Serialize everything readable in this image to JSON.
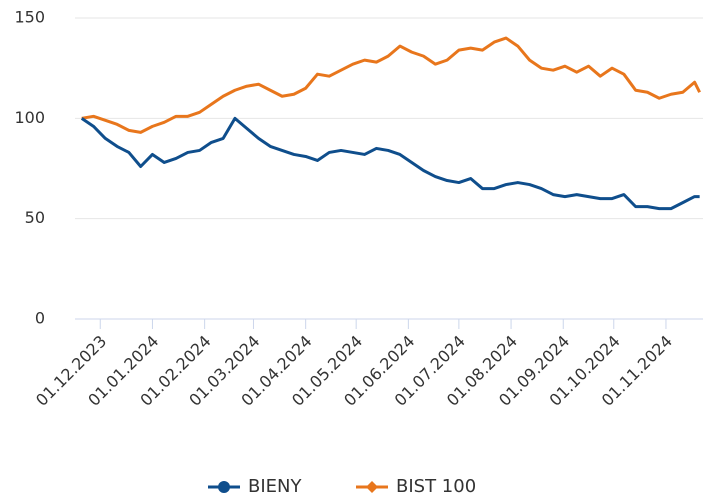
{
  "chart_data": {
    "type": "line",
    "x": [
      "20.11.2023",
      "27.11.2023",
      "04.12.2023",
      "11.12.2023",
      "18.12.2023",
      "25.12.2023",
      "01.01.2024",
      "08.01.2024",
      "15.01.2024",
      "22.01.2024",
      "29.01.2024",
      "05.02.2024",
      "12.02.2024",
      "19.02.2024",
      "26.02.2024",
      "04.03.2024",
      "11.03.2024",
      "18.03.2024",
      "25.03.2024",
      "01.04.2024",
      "08.04.2024",
      "15.04.2024",
      "22.04.2024",
      "29.04.2024",
      "06.05.2024",
      "13.05.2024",
      "20.05.2024",
      "27.05.2024",
      "03.06.2024",
      "10.06.2024",
      "17.06.2024",
      "24.06.2024",
      "01.07.2024",
      "08.07.2024",
      "15.07.2024",
      "22.07.2024",
      "29.07.2024",
      "05.08.2024",
      "12.08.2024",
      "19.08.2024",
      "26.08.2024",
      "02.09.2024",
      "09.09.2024",
      "16.09.2024",
      "23.09.2024",
      "30.09.2024",
      "07.10.2024",
      "14.10.2024",
      "21.10.2024",
      "28.10.2024",
      "04.11.2024",
      "11.11.2024",
      "18.11.2024",
      "21.11.2024"
    ],
    "series": [
      {
        "name": "BIENY",
        "color": "#0f4e8c",
        "marker": "circle",
        "values": [
          100,
          96,
          90,
          86,
          83,
          76,
          82,
          78,
          80,
          83,
          84,
          88,
          90,
          100,
          95,
          90,
          86,
          84,
          82,
          81,
          79,
          83,
          84,
          83,
          82,
          85,
          84,
          82,
          78,
          74,
          71,
          69,
          68,
          70,
          65,
          65,
          67,
          68,
          67,
          65,
          62,
          61,
          62,
          61,
          60,
          60,
          62,
          56,
          56,
          55,
          55,
          58,
          61,
          61
        ]
      },
      {
        "name": "BIST 100",
        "color": "#e8761c",
        "marker": "diamond",
        "values": [
          100,
          101,
          99,
          97,
          94,
          93,
          96,
          98,
          101,
          101,
          103,
          107,
          111,
          114,
          116,
          117,
          114,
          111,
          112,
          115,
          122,
          121,
          124,
          127,
          129,
          128,
          131,
          136,
          133,
          131,
          127,
          129,
          134,
          135,
          134,
          138,
          140,
          136,
          129,
          125,
          124,
          126,
          123,
          126,
          121,
          125,
          122,
          114,
          113,
          110,
          112,
          113,
          118,
          113
        ]
      }
    ],
    "xlim": [
      "16.11.2023",
      "23.11.2024"
    ],
    "xticks": [
      "01.12.2023",
      "01.01.2024",
      "01.02.2024",
      "01.03.2024",
      "01.04.2024",
      "01.05.2024",
      "01.06.2024",
      "01.07.2024",
      "01.08.2024",
      "01.09.2024",
      "01.10.2024",
      "01.11.2024"
    ],
    "ylim": [
      0,
      150
    ],
    "yticks": [
      0,
      50,
      100,
      150
    ],
    "grid": true
  }
}
